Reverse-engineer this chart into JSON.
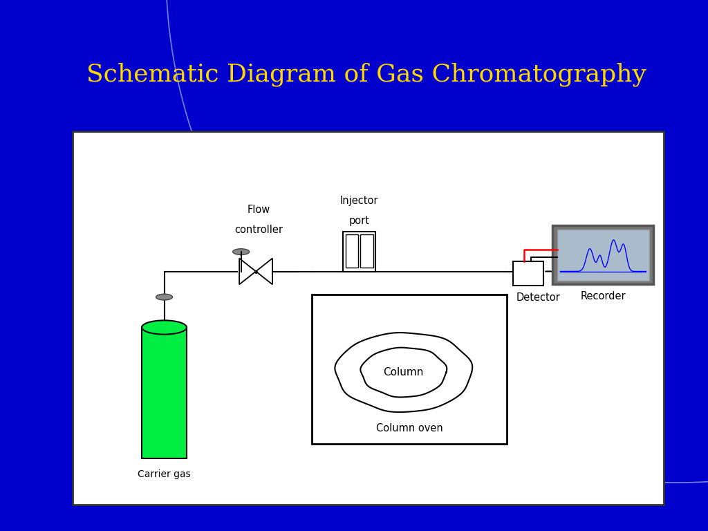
{
  "title": "Schematic Diagram of Gas Chromatography",
  "title_color": "#FFD700",
  "title_fontsize": 26,
  "bg_outer": "#0000CC",
  "bg_inner": "#FFFFFF",
  "carrier_gas_label": "Carrier gas",
  "flow_controller_label_1": "Flow",
  "flow_controller_label_2": "controller",
  "injector_port_label_1": "Injector",
  "injector_port_label_2": "port",
  "column_label": "Column",
  "column_oven_label": "Column oven",
  "detector_label": "Detector",
  "recorder_label": "Recorder",
  "arc_color": "#6699FF",
  "knob_color": "#888888",
  "green_cyl": "#00EE44",
  "rec_bg": "#AABBCC",
  "rec_border": "#666666"
}
